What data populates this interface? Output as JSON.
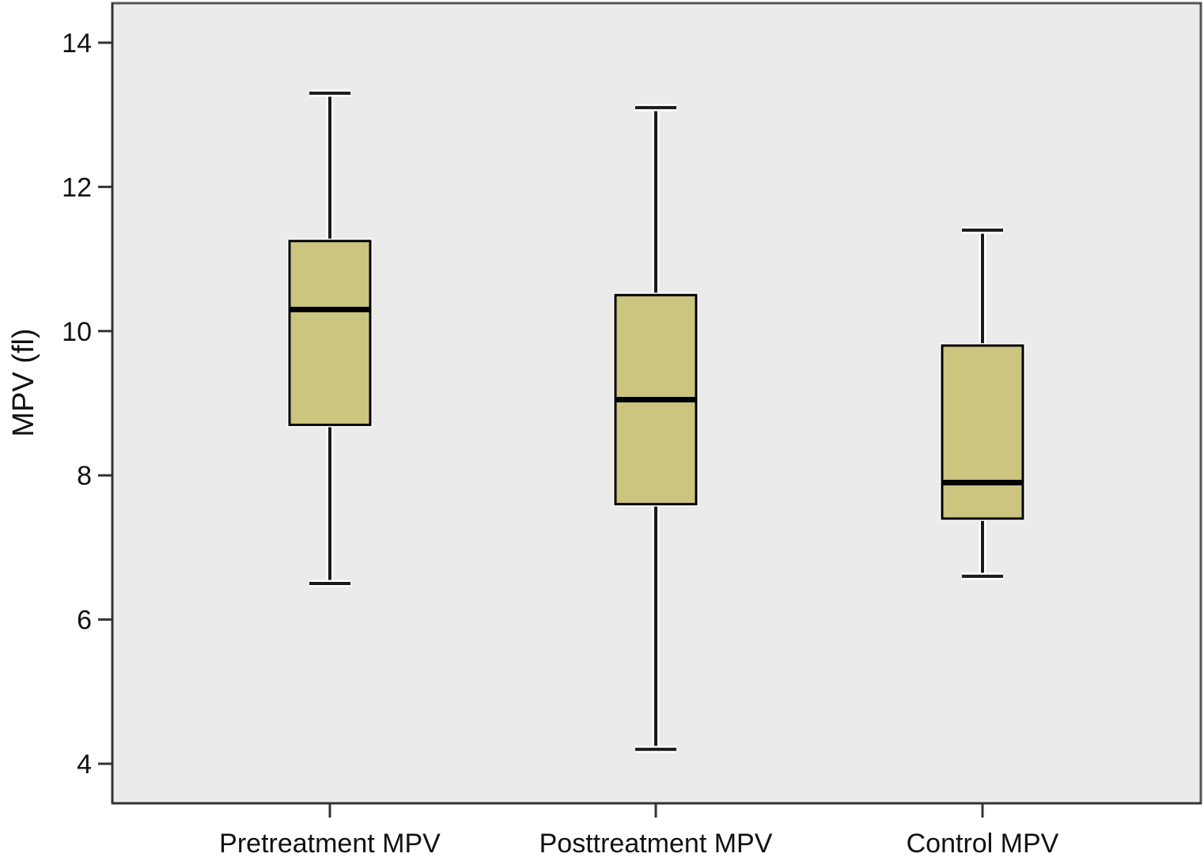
{
  "chart_data": {
    "type": "boxplot",
    "title": "",
    "xlabel": "",
    "ylabel": "MPV (fl)",
    "ylim": [
      3.6,
      14.5
    ],
    "yticks": [
      4,
      6,
      8,
      10,
      12,
      14
    ],
    "ytick_labels": [
      "4",
      "6",
      "8",
      "10",
      "12",
      "14"
    ],
    "categories": [
      "Pretreatment MPV",
      "Posttreatment MPV",
      "Control MPV"
    ],
    "boxes": [
      {
        "category": "Pretreatment MPV",
        "whisker_low": 6.5,
        "q1": 8.7,
        "median": 10.3,
        "q3": 11.25,
        "whisker_high": 13.3
      },
      {
        "category": "Posttreatment MPV",
        "whisker_low": 4.2,
        "q1": 7.6,
        "median": 9.05,
        "q3": 10.5,
        "whisker_high": 13.1
      },
      {
        "category": "Control MPV",
        "whisker_low": 6.6,
        "q1": 7.4,
        "median": 7.9,
        "q3": 9.8,
        "whisker_high": 11.4
      }
    ],
    "grid": false,
    "legend": "none",
    "colors": {
      "plot_background": "#ebebeb",
      "box_fill": "#cbc57f",
      "median": "#000000",
      "outline": "#000000",
      "frame": "#555555"
    }
  }
}
